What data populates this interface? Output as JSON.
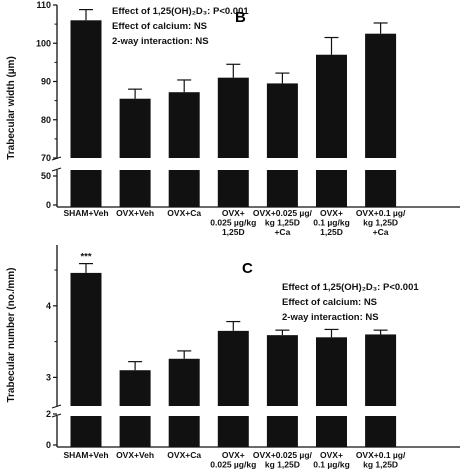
{
  "chart_data": [
    {
      "type": "bar",
      "panel_label": "B",
      "ylabel": "Trabecular width (µm)",
      "yticks_upper": [
        "70",
        "80",
        "90",
        "100",
        "110"
      ],
      "yticks_lower": [
        "0",
        "50"
      ],
      "ylim_upper": [
        70,
        110
      ],
      "broken_axis": true,
      "categories": [
        [
          "SHAM+Veh"
        ],
        [
          "OVX+Veh"
        ],
        [
          "OVX+Ca"
        ],
        [
          "OVX+",
          "0.025 µg/kg",
          "1,25D"
        ],
        [
          "OVX+0.025 µg/",
          "kg 1,25D",
          "+Ca"
        ],
        [
          "OVX+",
          "0.1 µg/kg",
          "1,25D"
        ],
        [
          "OVX+0.1 µg/",
          "kg 1,25D",
          "+Ca"
        ]
      ],
      "values": [
        106,
        85.5,
        87.2,
        91,
        89.5,
        97,
        102.5
      ],
      "errors": [
        2.8,
        2.5,
        3.2,
        3.5,
        2.7,
        4.5,
        2.8
      ],
      "significance": [
        "",
        "",
        "",
        "",
        "",
        "",
        ""
      ],
      "annotations": [
        "Effect of 1,25(OH)₂D₃: P<0.001",
        "Effect of calcium: NS",
        "2-way interaction: NS"
      ],
      "bar_color": "#111111"
    },
    {
      "type": "bar",
      "panel_label": "C",
      "ylabel": "Trabecular number (no./mm)",
      "yticks_upper": [
        "3",
        "4"
      ],
      "yticks_lower": [
        "0",
        "2"
      ],
      "ylim_upper": [
        2.6,
        4.85
      ],
      "broken_axis": true,
      "categories": [
        [
          "SHAM+Veh"
        ],
        [
          "OVX+Veh"
        ],
        [
          "OVX+Ca"
        ],
        [
          "OVX+",
          "0.025 µg/kg"
        ],
        [
          "OVX+0.025 µg/",
          "kg 1,25D"
        ],
        [
          "OVX+",
          "0.1 µg/kg"
        ],
        [
          "OVX+0.1 µg/",
          "kg 1,25D"
        ]
      ],
      "values": [
        4.46,
        3.1,
        3.26,
        3.65,
        3.59,
        3.56,
        3.6
      ],
      "errors": [
        0.13,
        0.12,
        0.11,
        0.13,
        0.07,
        0.11,
        0.06
      ],
      "significance": [
        "***",
        "",
        "",
        "",
        "",
        "",
        ""
      ],
      "annotations": [
        "Effect of 1,25(OH)₂D₃: P<0.001",
        "Effect of calcium: NS",
        "2-way interaction: NS"
      ],
      "bar_color": "#111111"
    }
  ]
}
